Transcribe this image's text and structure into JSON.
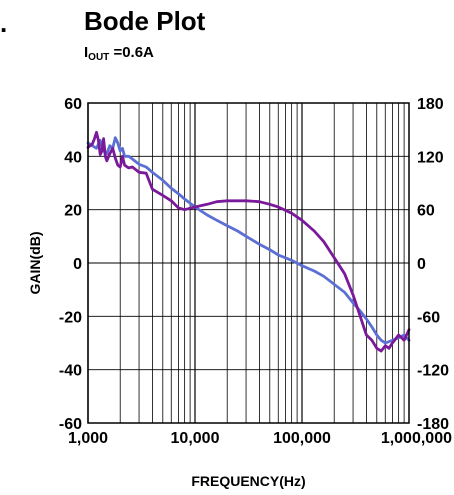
{
  "header": {
    "bullet": ".",
    "title": "Bode Plot",
    "subtitle_base": "I",
    "subtitle_sub": "OUT",
    "subtitle_rest": " =0.6A"
  },
  "chart_data": {
    "type": "line",
    "title": "Bode Plot",
    "subtitle": "IOUT =0.6A",
    "xlabel": "FREQUENCY(Hz)",
    "ylabel": "GAIN(dB)",
    "x_scale": "log",
    "xlim": [
      1000,
      1000000
    ],
    "ylim": [
      -60,
      60
    ],
    "y2lim": [
      -180,
      180
    ],
    "grid": true,
    "x_ticks": [
      1000,
      10000,
      100000,
      1000000
    ],
    "x_tick_labels": [
      "1,000",
      "10,000",
      "100,000",
      "1,000,000"
    ],
    "y_ticks": [
      60,
      40,
      20,
      0,
      -20,
      -40,
      -60
    ],
    "y_tick_labels": [
      "60",
      "40",
      "20",
      "0",
      "-20",
      "-40",
      "-60"
    ],
    "y2_ticks": [
      180,
      120,
      60,
      0,
      -60,
      -120,
      -180
    ],
    "y2_tick_labels": [
      "180",
      "120",
      "60",
      "0",
      "-60",
      "-120",
      "-180"
    ],
    "series": [
      {
        "color": "#5b6fd4",
        "axis": "left",
        "x": [
          1000,
          1100,
          1200,
          1300,
          1400,
          1500,
          1600,
          1700,
          1800,
          1900,
          2000,
          2100,
          2200,
          2400,
          2600,
          3000,
          3500,
          4000,
          5000,
          6000,
          7000,
          8000,
          10000,
          13000,
          16000,
          20000,
          25000,
          30000,
          40000,
          50000,
          60000,
          80000,
          100000,
          130000,
          160000,
          200000,
          250000,
          300000,
          350000,
          400000,
          450000,
          500000,
          550000,
          600000,
          700000,
          800000,
          900000,
          1000000
        ],
        "y": [
          45,
          44,
          43,
          46,
          42,
          41,
          44,
          43,
          47,
          45,
          42,
          43,
          40,
          40,
          39,
          37,
          36,
          34,
          31,
          28,
          26,
          24,
          21,
          18,
          16,
          14,
          12,
          10,
          7,
          5,
          3,
          1,
          -1,
          -3,
          -5,
          -8,
          -11,
          -15,
          -18,
          -21,
          -24,
          -27,
          -29,
          -30,
          -29,
          -28,
          -27,
          -29
        ]
      },
      {
        "color": "#7a1a9a",
        "axis": "right",
        "x": [
          1000,
          1100,
          1150,
          1200,
          1250,
          1300,
          1350,
          1400,
          1450,
          1500,
          1600,
          1700,
          1800,
          1900,
          2000,
          2100,
          2200,
          2400,
          2600,
          3000,
          3500,
          4000,
          5000,
          6000,
          7000,
          8000,
          10000,
          13000,
          16000,
          20000,
          25000,
          30000,
          40000,
          50000,
          60000,
          80000,
          100000,
          130000,
          160000,
          200000,
          250000,
          300000,
          350000,
          400000,
          450000,
          500000,
          550000,
          600000,
          650000,
          700000,
          800000,
          900000,
          1000000
        ],
        "y": [
          130,
          134,
          140,
          147,
          138,
          122,
          126,
          140,
          120,
          115,
          123,
          129,
          118,
          110,
          108,
          120,
          110,
          107,
          108,
          102,
          101,
          83,
          76,
          70,
          62,
          60,
          63,
          66,
          69,
          70,
          70,
          70,
          69,
          66,
          63,
          56,
          48,
          36,
          24,
          6,
          -12,
          -36,
          -60,
          -81,
          -87,
          -96,
          -99,
          -93,
          -96,
          -90,
          -81,
          -87,
          -75
        ]
      }
    ]
  }
}
